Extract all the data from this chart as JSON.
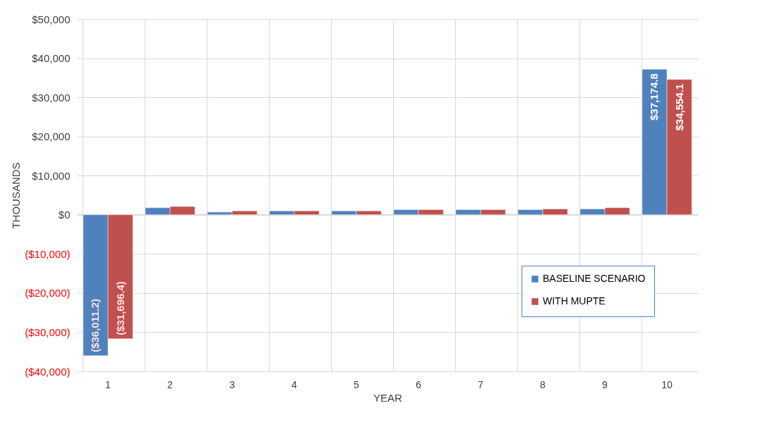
{
  "chart_data": {
    "type": "bar",
    "xlabel": "YEAR",
    "ylabel": "THOUSANDS",
    "categories": [
      "1",
      "2",
      "3",
      "4",
      "5",
      "6",
      "7",
      "8",
      "9",
      "10"
    ],
    "series": [
      {
        "name": "BASELINE SCENARIO",
        "color": "#4f81bd",
        "values": [
          -36011.2,
          1800,
          700,
          1000,
          1000,
          1300,
          1300,
          1300,
          1500,
          37174.8
        ],
        "value_labels": [
          "($36,011.2)",
          null,
          null,
          null,
          null,
          null,
          null,
          null,
          null,
          "$37,174.8"
        ]
      },
      {
        "name": "WITH MUPTE",
        "color": "#c0504d",
        "values": [
          -31696.4,
          2100,
          1000,
          1000,
          1000,
          1300,
          1300,
          1500,
          1800,
          34554.1
        ],
        "value_labels": [
          "($31,696.4)",
          null,
          null,
          null,
          null,
          null,
          null,
          null,
          null,
          "$34,554.1"
        ]
      }
    ],
    "ylim": [
      -40000,
      50000
    ],
    "yticks": [
      {
        "value": -40000,
        "label": "($40,000)"
      },
      {
        "value": -30000,
        "label": "($30,000)"
      },
      {
        "value": -20000,
        "label": "($20,000)"
      },
      {
        "value": -10000,
        "label": "($10,000)"
      },
      {
        "value": 0,
        "label": "$0"
      },
      {
        "value": 10000,
        "label": "$10,000"
      },
      {
        "value": 20000,
        "label": "$20,000"
      },
      {
        "value": 30000,
        "label": "$30,000"
      },
      {
        "value": 40000,
        "label": "$40,000"
      },
      {
        "value": 50000,
        "label": "$50,000"
      }
    ],
    "grid": true,
    "legend": "bottom right"
  }
}
